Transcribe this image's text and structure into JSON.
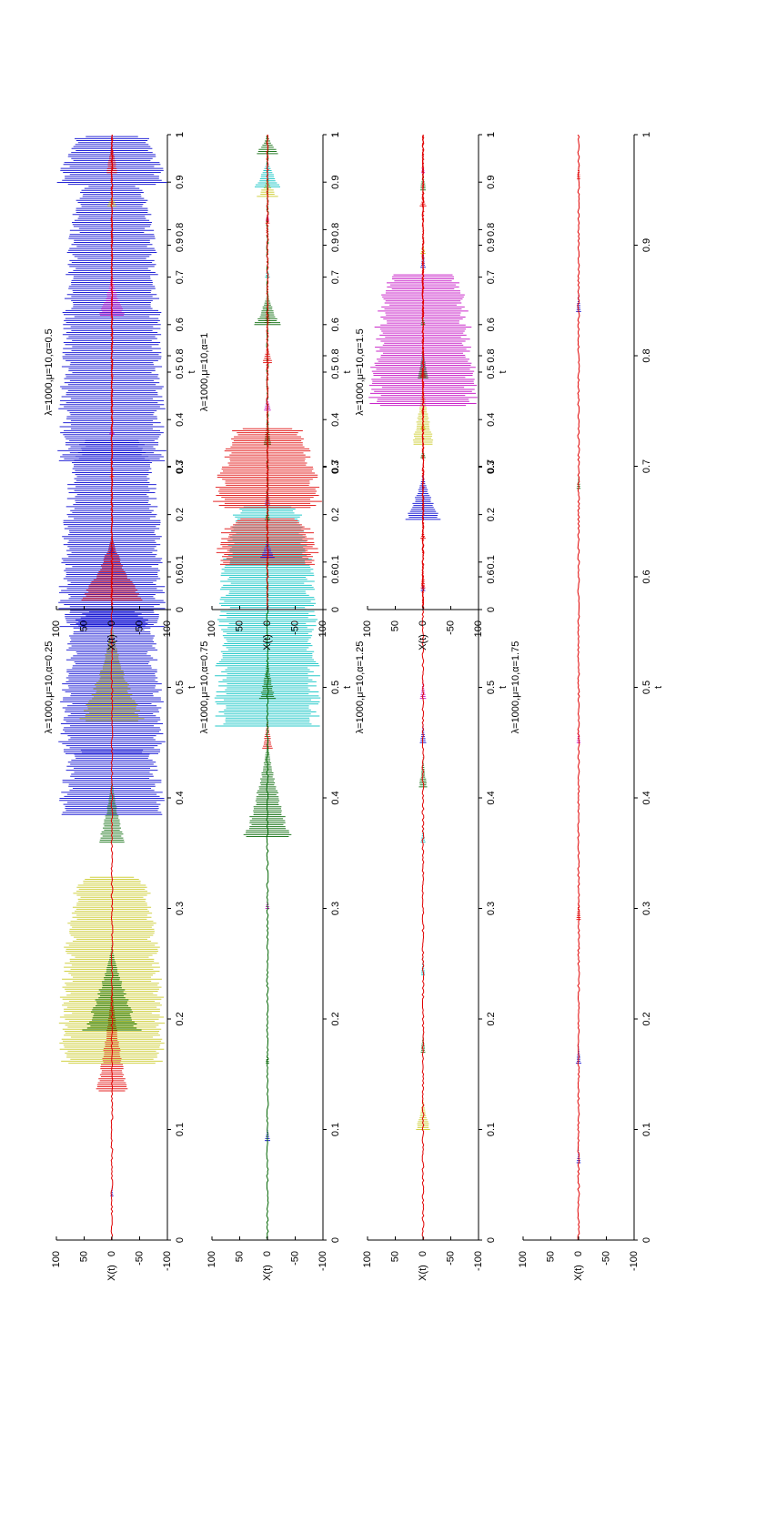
{
  "figure": {
    "orientation": "rotated 90 degrees counter-clockwise",
    "colors": {
      "blue": "#0000d0",
      "yellow": "#c8c820",
      "dark_green": "#006400",
      "red": "#e00000",
      "magenta": "#c000c0",
      "cyan": "#00c0c0",
      "background": "#ffffff",
      "axes": "#000000"
    }
  },
  "chart_data": [
    {
      "type": "line",
      "title": "λ=1000,μ=10,α=0.25",
      "xlabel": "t",
      "ylabel": "X(t)",
      "xlim": [
        0,
        1
      ],
      "ylim": [
        -100,
        100
      ],
      "xticks": [
        "0",
        "0.1",
        "0.2",
        "0.3",
        "0.4",
        "0.5",
        "0.6",
        "0.7",
        "0.8",
        "0.9",
        "1"
      ],
      "yticks": [
        "-100",
        "-50",
        "0",
        "50",
        "100"
      ],
      "grid": false,
      "x_ticks_visible": true,
      "bursts": [
        {
          "t": 0.04,
          "amp": 3,
          "w": 0.01,
          "color": "blue"
        },
        {
          "t": 0.135,
          "amp": 30,
          "w": 0.1,
          "color": "red"
        },
        {
          "t": 0.16,
          "amp": 100,
          "w": 0.17,
          "color": "yellow"
        },
        {
          "t": 0.19,
          "amp": 55,
          "w": 0.08,
          "color": "dark_green"
        },
        {
          "t": 0.385,
          "amp": 100,
          "w": 0.06,
          "color": "blue"
        },
        {
          "t": 0.36,
          "amp": 25,
          "w": 0.06,
          "color": "dark_green"
        },
        {
          "t": 0.44,
          "amp": 100,
          "w": 0.13,
          "color": "blue"
        },
        {
          "t": 0.47,
          "amp": 60,
          "w": 0.09,
          "color": "yellow"
        },
        {
          "t": 0.555,
          "amp": 100,
          "w": 0.17,
          "color": "blue"
        },
        {
          "t": 0.705,
          "amp": 100,
          "w": 0.25,
          "color": "blue"
        },
        {
          "t": 0.955,
          "amp": 100,
          "w": 0.045,
          "color": "blue"
        }
      ],
      "baseline_color": "red"
    },
    {
      "type": "line",
      "title": "λ=1000,μ=10,α=0.75",
      "xlabel": "t",
      "ylabel": "X(t)",
      "xlim": [
        0,
        1
      ],
      "ylim": [
        -100,
        100
      ],
      "xticks": [
        "0",
        "0.1",
        "0.2",
        "0.3",
        "0.4",
        "0.5",
        "0.6",
        "0.7",
        "0.8",
        "0.9",
        "1"
      ],
      "yticks": [
        "-100",
        "-50",
        "0",
        "50",
        "100"
      ],
      "grid": false,
      "bursts": [
        {
          "t": 0.09,
          "amp": 5,
          "w": 0.015,
          "color": "blue"
        },
        {
          "t": 0.16,
          "amp": 4,
          "w": 0.01,
          "color": "dark_green"
        },
        {
          "t": 0.3,
          "amp": 4,
          "w": 0.01,
          "color": "magenta"
        },
        {
          "t": 0.365,
          "amp": 45,
          "w": 0.09,
          "color": "dark_green"
        },
        {
          "t": 0.445,
          "amp": 10,
          "w": 0.03,
          "color": "red"
        },
        {
          "t": 0.465,
          "amp": 100,
          "w": 0.2,
          "color": "cyan"
        },
        {
          "t": 0.49,
          "amp": 15,
          "w": 0.04,
          "color": "dark_green"
        },
        {
          "t": 0.665,
          "amp": 5,
          "w": 0.02,
          "color": "blue"
        },
        {
          "t": 0.72,
          "amp": 7,
          "w": 0.03,
          "color": "dark_green"
        },
        {
          "t": 0.83,
          "amp": 6,
          "w": 0.02,
          "color": "red"
        },
        {
          "t": 0.92,
          "amp": 4,
          "w": 0.01,
          "color": "red"
        }
      ],
      "baseline_color": "dark_green"
    },
    {
      "type": "line",
      "title": "λ=1000,μ=10,α=1.25",
      "xlabel": "t",
      "ylabel": "X(t)",
      "xlim": [
        0,
        1
      ],
      "ylim": [
        -100,
        100
      ],
      "xticks": [
        "0",
        "0.1",
        "0.2",
        "0.3",
        "0.4",
        "0.5",
        "0.6",
        "0.7",
        "0.8",
        "0.9",
        "1"
      ],
      "yticks": [
        "-100",
        "-50",
        "0",
        "50",
        "100"
      ],
      "grid": false,
      "bursts": [
        {
          "t": 0.1,
          "amp": 14,
          "w": 0.03,
          "color": "yellow"
        },
        {
          "t": 0.17,
          "amp": 5,
          "w": 0.02,
          "color": "dark_green"
        },
        {
          "t": 0.24,
          "amp": 4,
          "w": 0.02,
          "color": "cyan"
        },
        {
          "t": 0.36,
          "amp": 5,
          "w": 0.015,
          "color": "cyan"
        },
        {
          "t": 0.41,
          "amp": 8,
          "w": 0.03,
          "color": "dark_green"
        },
        {
          "t": 0.45,
          "amp": 6,
          "w": 0.02,
          "color": "blue"
        },
        {
          "t": 0.49,
          "amp": 6,
          "w": 0.02,
          "color": "magenta"
        },
        {
          "t": 0.59,
          "amp": 5,
          "w": 0.02,
          "color": "red"
        },
        {
          "t": 0.72,
          "amp": 22,
          "w": 0.06,
          "color": "yellow"
        },
        {
          "t": 0.755,
          "amp": 100,
          "w": 0.12,
          "color": "magenta"
        },
        {
          "t": 0.78,
          "amp": 10,
          "w": 0.03,
          "color": "dark_green"
        },
        {
          "t": 0.88,
          "amp": 5,
          "w": 0.02,
          "color": "blue"
        },
        {
          "t": 0.95,
          "amp": 6,
          "w": 0.02,
          "color": "dark_green"
        }
      ],
      "baseline_color": "red"
    },
    {
      "type": "line",
      "title": "λ=1000,μ=10,α=1.75",
      "xlabel": "t",
      "ylabel": "X(t)",
      "xlim": [
        0,
        1
      ],
      "ylim": [
        -100,
        100
      ],
      "xticks": [
        "0",
        "0.1",
        "0.2",
        "0.3",
        "0.4",
        "0.5",
        "0.6",
        "0.7",
        "0.8",
        "0.9",
        "1"
      ],
      "yticks": [
        "-100",
        "-50",
        "0",
        "50",
        "100"
      ],
      "grid": false,
      "bursts": [
        {
          "t": 0.07,
          "amp": 4,
          "w": 0.015,
          "color": "blue"
        },
        {
          "t": 0.16,
          "amp": 5,
          "w": 0.02,
          "color": "blue"
        },
        {
          "t": 0.29,
          "amp": 5,
          "w": 0.02,
          "color": "red"
        },
        {
          "t": 0.45,
          "amp": 4,
          "w": 0.015,
          "color": "magenta"
        },
        {
          "t": 0.68,
          "amp": 4,
          "w": 0.015,
          "color": "dark_green"
        },
        {
          "t": 0.84,
          "amp": 5,
          "w": 0.02,
          "color": "blue"
        },
        {
          "t": 0.96,
          "amp": 4,
          "w": 0.015,
          "color": "red"
        }
      ],
      "baseline_color": "red"
    },
    {
      "type": "line",
      "title": "λ=1000,μ=10,α=0.5",
      "xlabel": "t",
      "ylabel": "X(t)",
      "xlim": [
        0,
        1
      ],
      "ylim": [
        -100,
        100
      ],
      "xticks": [
        "0",
        "0.1",
        "0.2",
        "0.3",
        "0.4",
        "0.5",
        "0.6",
        "0.7",
        "0.8",
        "0.9",
        "1"
      ],
      "yticks": [
        "-100",
        "-50",
        "0",
        "50",
        "100"
      ],
      "grid": false,
      "bursts": [
        {
          "t": 0.02,
          "amp": 60,
          "w": 0.14,
          "color": "red"
        },
        {
          "t": 0.12,
          "amp": 5,
          "w": 0.02,
          "color": "blue"
        },
        {
          "t": 0.28,
          "amp": 4,
          "w": 0.015,
          "color": "red"
        },
        {
          "t": 0.37,
          "amp": 5,
          "w": 0.015,
          "color": "magenta"
        },
        {
          "t": 0.62,
          "amp": 25,
          "w": 0.09,
          "color": "magenta"
        },
        {
          "t": 0.85,
          "amp": 10,
          "w": 0.025,
          "color": "yellow"
        },
        {
          "t": 0.92,
          "amp": 12,
          "w": 0.07,
          "color": "red"
        }
      ],
      "baseline_color": "red"
    },
    {
      "type": "line",
      "title": "λ=1000,μ=10,α=1",
      "xlabel": "t",
      "ylabel": "X(t)",
      "xlim": [
        0,
        1
      ],
      "ylim": [
        -100,
        100
      ],
      "xticks": [
        "0",
        "0.1",
        "0.2",
        "0.3",
        "0.4",
        "0.5",
        "0.6",
        "0.7",
        "0.8",
        "0.9",
        "1"
      ],
      "yticks": [
        "-100",
        "-50",
        "0",
        "50",
        "100"
      ],
      "grid": false,
      "bursts": [
        {
          "t": 0.095,
          "amp": 100,
          "w": 0.1,
          "color": "red"
        },
        {
          "t": 0.11,
          "amp": 15,
          "w": 0.04,
          "color": "blue"
        },
        {
          "t": 0.19,
          "amp": 6,
          "w": 0.02,
          "color": "dark_green"
        },
        {
          "t": 0.215,
          "amp": 100,
          "w": 0.17,
          "color": "red"
        },
        {
          "t": 0.42,
          "amp": 8,
          "w": 0.03,
          "color": "magenta"
        },
        {
          "t": 0.52,
          "amp": 10,
          "w": 0.04,
          "color": "red"
        },
        {
          "t": 0.6,
          "amp": 25,
          "w": 0.07,
          "color": "dark_green"
        },
        {
          "t": 0.7,
          "amp": 5,
          "w": 0.02,
          "color": "cyan"
        },
        {
          "t": 0.82,
          "amp": 4,
          "w": 0.015,
          "color": "magenta"
        },
        {
          "t": 0.87,
          "amp": 20,
          "w": 0.04,
          "color": "yellow"
        },
        {
          "t": 0.89,
          "amp": 25,
          "w": 0.06,
          "color": "cyan"
        },
        {
          "t": 0.96,
          "amp": 25,
          "w": 0.05,
          "color": "dark_green"
        }
      ],
      "baseline_color": "red"
    },
    {
      "type": "line",
      "title": "λ=1000,μ=10,α=1.5",
      "xlabel": "t",
      "ylabel": "X(t)",
      "xlim": [
        0,
        1
      ],
      "ylim": [
        -100,
        100
      ],
      "xticks": [
        "0",
        "0.1",
        "0.2",
        "0.3",
        "0.4",
        "0.5",
        "0.6",
        "0.7",
        "0.8",
        "0.9",
        "1"
      ],
      "yticks": [
        "-100",
        "-50",
        "0",
        "50",
        "100"
      ],
      "grid": false,
      "bursts": [
        {
          "t": 0.04,
          "amp": 4,
          "w": 0.015,
          "color": "blue"
        },
        {
          "t": 0.15,
          "amp": 5,
          "w": 0.02,
          "color": "red"
        },
        {
          "t": 0.19,
          "amp": 35,
          "w": 0.1,
          "color": "blue"
        },
        {
          "t": 0.32,
          "amp": 5,
          "w": 0.02,
          "color": "dark_green"
        },
        {
          "t": 0.38,
          "amp": 5,
          "w": 0.02,
          "color": "yellow"
        },
        {
          "t": 0.49,
          "amp": 6,
          "w": 0.02,
          "color": "red"
        },
        {
          "t": 0.6,
          "amp": 5,
          "w": 0.02,
          "color": "dark_green"
        },
        {
          "t": 0.75,
          "amp": 5,
          "w": 0.02,
          "color": "yellow"
        },
        {
          "t": 0.85,
          "amp": 6,
          "w": 0.02,
          "color": "red"
        },
        {
          "t": 0.92,
          "amp": 4,
          "w": 0.02,
          "color": "magenta"
        }
      ],
      "baseline_color": "red"
    }
  ]
}
